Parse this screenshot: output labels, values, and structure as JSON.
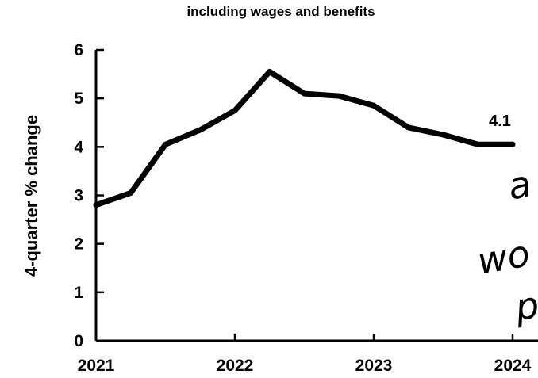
{
  "chart_data": {
    "type": "line",
    "title": "including wages and benefits",
    "xlabel": "",
    "ylabel": "4-quarter % change",
    "x": [
      2021.0,
      2021.25,
      2021.5,
      2021.75,
      2022.0,
      2022.25,
      2022.5,
      2022.75,
      2023.0,
      2023.25,
      2023.5,
      2023.75,
      2024.0
    ],
    "series": [
      {
        "values": [
          2.8,
          3.05,
          4.05,
          4.35,
          4.75,
          5.55,
          5.1,
          5.05,
          4.85,
          4.4,
          4.25,
          4.05,
          4.05
        ]
      }
    ],
    "xlim": [
      2021,
      2024.2
    ],
    "ylim": [
      0,
      6
    ],
    "xticks": [
      "2021",
      "2022",
      "2023",
      "2024"
    ],
    "yticks": [
      "0",
      "1",
      "2",
      "3",
      "4",
      "5",
      "6"
    ],
    "annotation": "4.1",
    "grid": false,
    "legend": "none",
    "line_color": "#000000"
  },
  "handwriting": [
    "a",
    "wo",
    "p"
  ]
}
